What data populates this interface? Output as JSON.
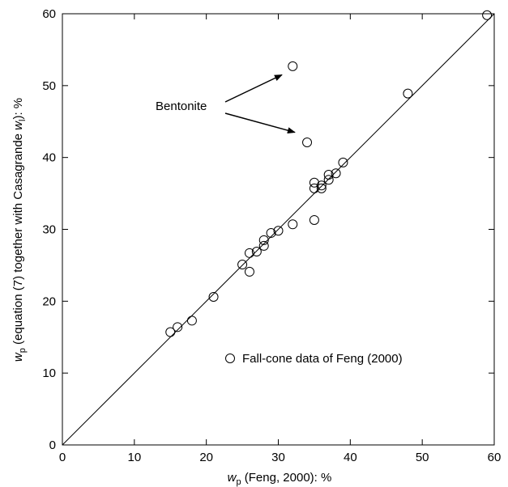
{
  "chart_data": {
    "type": "scatter",
    "xlabel": {
      "var": "w",
      "sub": "p",
      "text": " (Feng, 2000): %"
    },
    "ylabel": {
      "var": "w",
      "sub": "p",
      "mid": " (equation (7) together with Casagrande ",
      "var2": "w",
      "sub2": "l",
      "end": "): %"
    },
    "xlim": [
      0,
      60
    ],
    "ylim": [
      0,
      60
    ],
    "xticks": [
      0,
      10,
      20,
      30,
      40,
      50,
      60
    ],
    "yticks": [
      0,
      10,
      20,
      30,
      40,
      50,
      60
    ],
    "grid": false,
    "legend": {
      "position": "lower-right",
      "entries": [
        "Fall-cone data of Feng (2000)"
      ]
    },
    "reference_line": {
      "from": [
        0,
        0
      ],
      "to": [
        60,
        60
      ]
    },
    "series": [
      {
        "name": "Fall-cone data of Feng (2000)",
        "marker": "open-circle",
        "points": [
          [
            15,
            15.7
          ],
          [
            16,
            16.4
          ],
          [
            18,
            17.3
          ],
          [
            21,
            20.6
          ],
          [
            25,
            25.1
          ],
          [
            26,
            26.7
          ],
          [
            26,
            24.1
          ],
          [
            27,
            26.9
          ],
          [
            28,
            27.7
          ],
          [
            28,
            28.5
          ],
          [
            29,
            29.5
          ],
          [
            30,
            29.8
          ],
          [
            32,
            30.7
          ],
          [
            35,
            31.3
          ],
          [
            35,
            35.7
          ],
          [
            35,
            36.5
          ],
          [
            36,
            35.7
          ],
          [
            36,
            36.1
          ],
          [
            37,
            36.9
          ],
          [
            37,
            37.6
          ],
          [
            38,
            37.8
          ],
          [
            39,
            39.3
          ],
          [
            48,
            48.9
          ],
          [
            59,
            59.8
          ],
          [
            32,
            52.7
          ],
          [
            34,
            42.1
          ]
        ]
      }
    ],
    "annotation": {
      "text": "Bentonite",
      "arrow_targets": [
        [
          30.5,
          51.5
        ],
        [
          32.3,
          43.5
        ]
      ]
    }
  }
}
